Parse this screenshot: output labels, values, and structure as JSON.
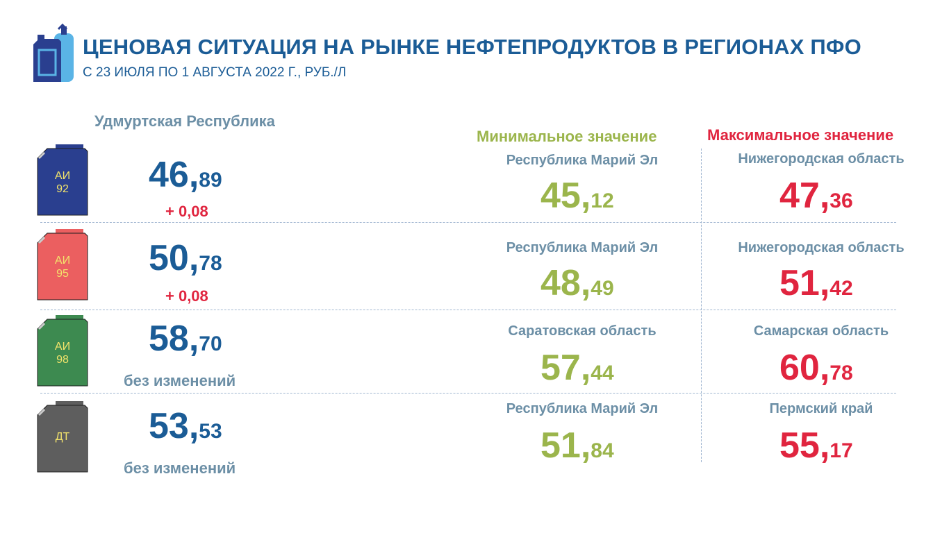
{
  "header": {
    "title": "ЦЕНОВАЯ СИТУАЦИЯ НА РЫНКЕ НЕФТЕПРОДУКТОВ В РЕГИОНАХ ПФО",
    "subtitle": "С 23 ИЮЛЯ ПО 1 АВГУСТА 2022 Г., РУБ./Л",
    "logo_icon": "fuel-canister-and-gas-cylinder-icon"
  },
  "region_label": "Удмуртская Республика",
  "min_header": "Минимальное значение",
  "max_header": "Максимальное значение",
  "colors": {
    "title": "#1B5C96",
    "min": "#9BB54C",
    "max": "#E0253F",
    "muted": "#6C8FA6"
  },
  "fuels": [
    {
      "label_line1": "АИ",
      "label_line2": "92",
      "can_color": "#2A3F8F",
      "price_int": "46",
      "price_dec": "89",
      "change": "+ 0,08",
      "min_region": "Республика Марий Эл",
      "min_int": "45",
      "min_dec": "12",
      "max_region": "Нижегородская область",
      "max_int": "47",
      "max_dec": "36"
    },
    {
      "label_line1": "АИ",
      "label_line2": "95",
      "can_color": "#EB5F60",
      "price_int": "50",
      "price_dec": "78",
      "change": "+ 0,08",
      "min_region": "Республика Марий Эл",
      "min_int": "48",
      "min_dec": "49",
      "max_region": "Нижегородская область",
      "max_int": "51",
      "max_dec": "42"
    },
    {
      "label_line1": "АИ",
      "label_line2": "98",
      "can_color": "#3D8A50",
      "price_int": "58",
      "price_dec": "70",
      "change": "без изменений",
      "min_region": "Саратовская область",
      "min_int": "57",
      "min_dec": "44",
      "max_region": "Самарская область",
      "max_int": "60",
      "max_dec": "78"
    },
    {
      "label_line1": "ДТ",
      "label_line2": "",
      "can_color": "#5E5E5E",
      "price_int": "53",
      "price_dec": "53",
      "change": "без изменений",
      "min_region": "Республика Марий Эл",
      "min_int": "51",
      "min_dec": "84",
      "max_region": "Пермский край",
      "max_int": "55",
      "max_dec": "17"
    }
  ]
}
